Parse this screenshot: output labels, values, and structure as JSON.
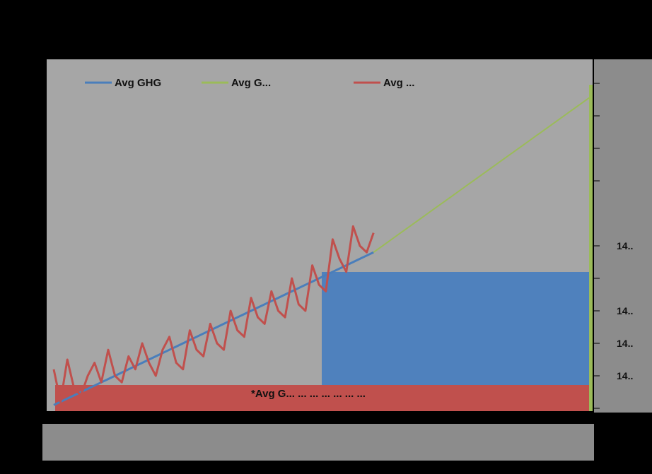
{
  "chart_data": {
    "type": "line",
    "title": "",
    "xlabel": "",
    "ylabel": "",
    "x": [
      0,
      1,
      2,
      3,
      4,
      5,
      6,
      7,
      8,
      9,
      10,
      11,
      12,
      13,
      14,
      15,
      16,
      17,
      18,
      19,
      20,
      21,
      22,
      23,
      24,
      25,
      26,
      27,
      28,
      29,
      30,
      31,
      32,
      33,
      34,
      35,
      36,
      37,
      38,
      39,
      40,
      41,
      42,
      43,
      44,
      45,
      46,
      47,
      48,
      49,
      50,
      51,
      52,
      53,
      54,
      55,
      56,
      57,
      58,
      59,
      60,
      61,
      62,
      63,
      64,
      65,
      66,
      67,
      68,
      69,
      70,
      71,
      72,
      73,
      74,
      75,
      76,
      77,
      78,
      79
    ],
    "xlim": [
      0,
      79
    ],
    "ylim": [
      0,
      100
    ],
    "grid": false,
    "legend_position": "top",
    "series": [
      {
        "name": "Avg GHG",
        "color": "#4a7ebb",
        "values": [
          1,
          2,
          3,
          4,
          5,
          6,
          7,
          8,
          9,
          10,
          11,
          12,
          13,
          14,
          15,
          16,
          17,
          18,
          19,
          20,
          21,
          22,
          23,
          24,
          25,
          26,
          27,
          28,
          29,
          30,
          31,
          32,
          33,
          34,
          35,
          36,
          37,
          38,
          39,
          40,
          41,
          42,
          43,
          44,
          45,
          46,
          47,
          48,
          null,
          null,
          null,
          null,
          null,
          null,
          null,
          null,
          null,
          null,
          null,
          null,
          null,
          null,
          null,
          null,
          null,
          null,
          null,
          null,
          null,
          null,
          null,
          null,
          null,
          null,
          null,
          null,
          null,
          null,
          null,
          null
        ]
      },
      {
        "name": "Avg G...",
        "color": "#9bbb59",
        "values": [
          null,
          null,
          null,
          null,
          null,
          null,
          null,
          null,
          null,
          null,
          null,
          null,
          null,
          null,
          null,
          null,
          null,
          null,
          null,
          null,
          null,
          null,
          null,
          null,
          null,
          null,
          null,
          null,
          null,
          null,
          null,
          null,
          null,
          null,
          null,
          null,
          null,
          null,
          null,
          null,
          null,
          null,
          null,
          null,
          null,
          null,
          null,
          48,
          49.5,
          51,
          52.5,
          54,
          55.5,
          57,
          58.5,
          60,
          61.5,
          63,
          64.5,
          66,
          67.5,
          69,
          70.5,
          72,
          73.5,
          75,
          76.5,
          78,
          79.5,
          81,
          82.5,
          84,
          85.5,
          87,
          88.5,
          90,
          91.5,
          93,
          94.5,
          96
        ]
      },
      {
        "name": "Avg ...",
        "color": "#c0504d",
        "values": [
          12,
          2,
          15,
          6,
          4,
          10,
          14,
          8,
          18,
          10,
          8,
          16,
          12,
          20,
          14,
          10,
          18,
          22,
          14,
          12,
          24,
          18,
          16,
          26,
          20,
          18,
          30,
          24,
          22,
          34,
          28,
          26,
          36,
          30,
          28,
          40,
          32,
          30,
          44,
          38,
          36,
          52,
          46,
          42,
          56,
          50,
          48,
          54,
          null,
          null,
          null,
          null,
          null,
          null,
          null,
          null,
          null,
          null,
          null,
          null,
          null,
          null,
          null,
          null,
          null,
          null,
          null,
          null,
          null,
          null,
          null,
          null,
          null,
          null,
          null,
          null,
          null,
          null,
          null,
          null
        ]
      }
    ]
  },
  "right_axis": {
    "ticks": [
      {
        "label": "",
        "v": 100
      },
      {
        "label": "",
        "v": 90
      },
      {
        "label": "",
        "v": 80
      },
      {
        "label": "",
        "v": 70
      },
      {
        "label": "14..",
        "v": 50
      },
      {
        "label": "",
        "v": 40
      },
      {
        "label": "14..",
        "v": 30
      },
      {
        "label": "14..",
        "v": 20
      },
      {
        "label": "14..",
        "v": 10
      },
      {
        "label": "",
        "v": 0
      }
    ]
  },
  "bottom_axis": {
    "labels": [
      "",
      "",
      "",
      "",
      "",
      "",
      "",
      "",
      "",
      "",
      "",
      "",
      "",
      "",
      "",
      "",
      "",
      "",
      ""
    ]
  },
  "annotation": {
    "text": "*Avg G... ... ... ... ... ... ...",
    "color": "#111111"
  },
  "colors": {
    "plot_bg": "#a6a6a6",
    "frame": "#000000",
    "box_blue": "#4f81bd",
    "box_red": "#c0504d",
    "box_green": "#9bbb59",
    "strip_bg": "#8c8c8c"
  }
}
